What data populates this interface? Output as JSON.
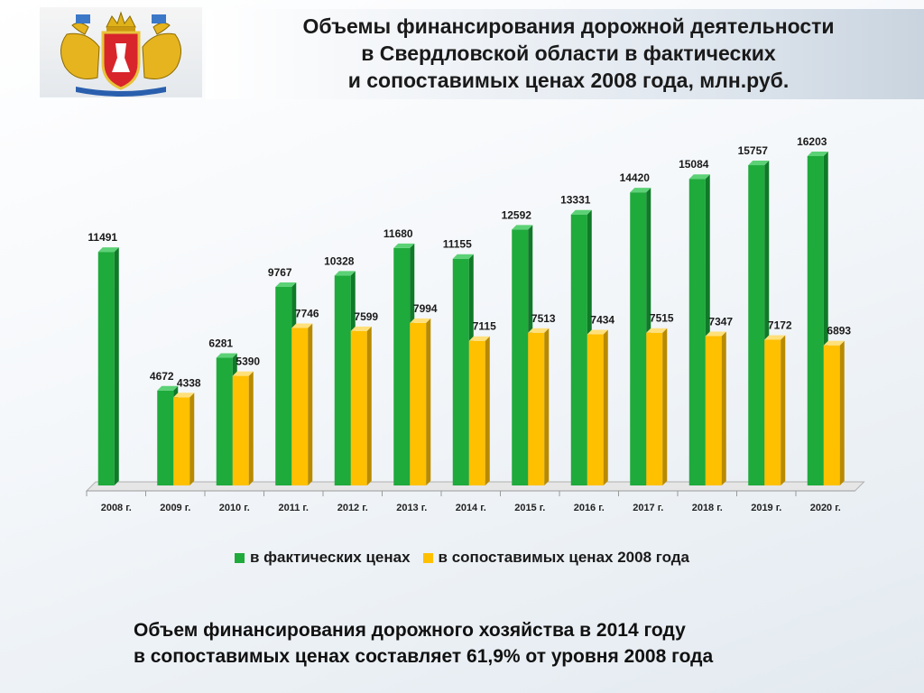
{
  "header": {
    "title_lines": [
      "Объемы финансирования дорожной деятельности",
      "в Свердловской области в фактических",
      "и сопоставимых ценах 2008 года, млн.руб."
    ]
  },
  "emblem": {
    "icon": "sverdlovsk-coat-of-arms-icon"
  },
  "chart_data": {
    "type": "bar",
    "title": "",
    "xlabel": "",
    "ylabel": "",
    "categories": [
      "2008 г.",
      "2009 г.",
      "2010 г.",
      "2011 г.",
      "2012 г.",
      "2013 г.",
      "2014 г.",
      "2015 г.",
      "2016 г.",
      "2017 г.",
      "2018 г.",
      "2019 г.",
      "2020 г."
    ],
    "series": [
      {
        "name": "в фактических ценах",
        "color": "#1faa3c",
        "values": [
          11491,
          4672,
          6281,
          9767,
          10328,
          11680,
          11155,
          12592,
          13331,
          14420,
          15084,
          15757,
          16203
        ]
      },
      {
        "name": "в сопоставимых ценах 2008 года",
        "color": "#ffc000",
        "values": [
          null,
          4338,
          5390,
          7746,
          7599,
          7994,
          7115,
          7513,
          7434,
          7515,
          7347,
          7172,
          6893
        ]
      }
    ],
    "ylim": [
      0,
      17000
    ],
    "grid": false,
    "legend_position": "bottom"
  },
  "footnote": {
    "lines": [
      "Объем финансирования дорожного хозяйства в 2014 году",
      "в сопоставимых ценах составляет 61,9% от уровня 2008 года"
    ]
  }
}
